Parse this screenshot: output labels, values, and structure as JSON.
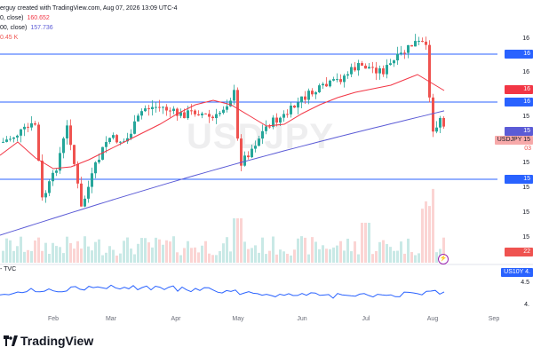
{
  "header": {
    "line1": "erguy created with TradingView.com, Aug 07, 2026 13:09 UTC-4",
    "ma50_label": "0, close)",
    "ma50_value": "160.652",
    "ma200_label": "00, close)",
    "ma200_value": "157.736",
    "volume_value": "0.45 K"
  },
  "watermark": "USDJPY",
  "right_axis": {
    "symbol_label": "USDJPY",
    "symbol_price_top": "15",
    "symbol_price_bottom": "03",
    "ticks": [
      "16",
      "16",
      "16",
      "16",
      "16",
      "15",
      "15",
      "15",
      "15",
      "15",
      "15",
      "15",
      "15"
    ],
    "ma_red_label": "16",
    "ma_blue_label": "15",
    "level_labels": [
      "16",
      "16",
      "15"
    ],
    "volume_badge": "22"
  },
  "x_axis": [
    "Feb",
    "Mar",
    "Apr",
    "May",
    "Jun",
    "Jul",
    "Aug",
    "Sep"
  ],
  "sub_pane": {
    "title": "- TVC",
    "badge_label": "US10Y",
    "badge_value": "4.",
    "ticks": [
      "4.5",
      "4."
    ]
  },
  "branding": "TradingView",
  "colors": {
    "up": "#26a69a",
    "down": "#ef5350",
    "ma50": "#f23645",
    "ma200": "#5b5bd6",
    "level": "#2962ff",
    "sub_line": "#2962ff"
  },
  "chart_data": {
    "type": "candlestick",
    "price_levels": [
      161.9,
      159.9,
      155.8
    ]
  }
}
